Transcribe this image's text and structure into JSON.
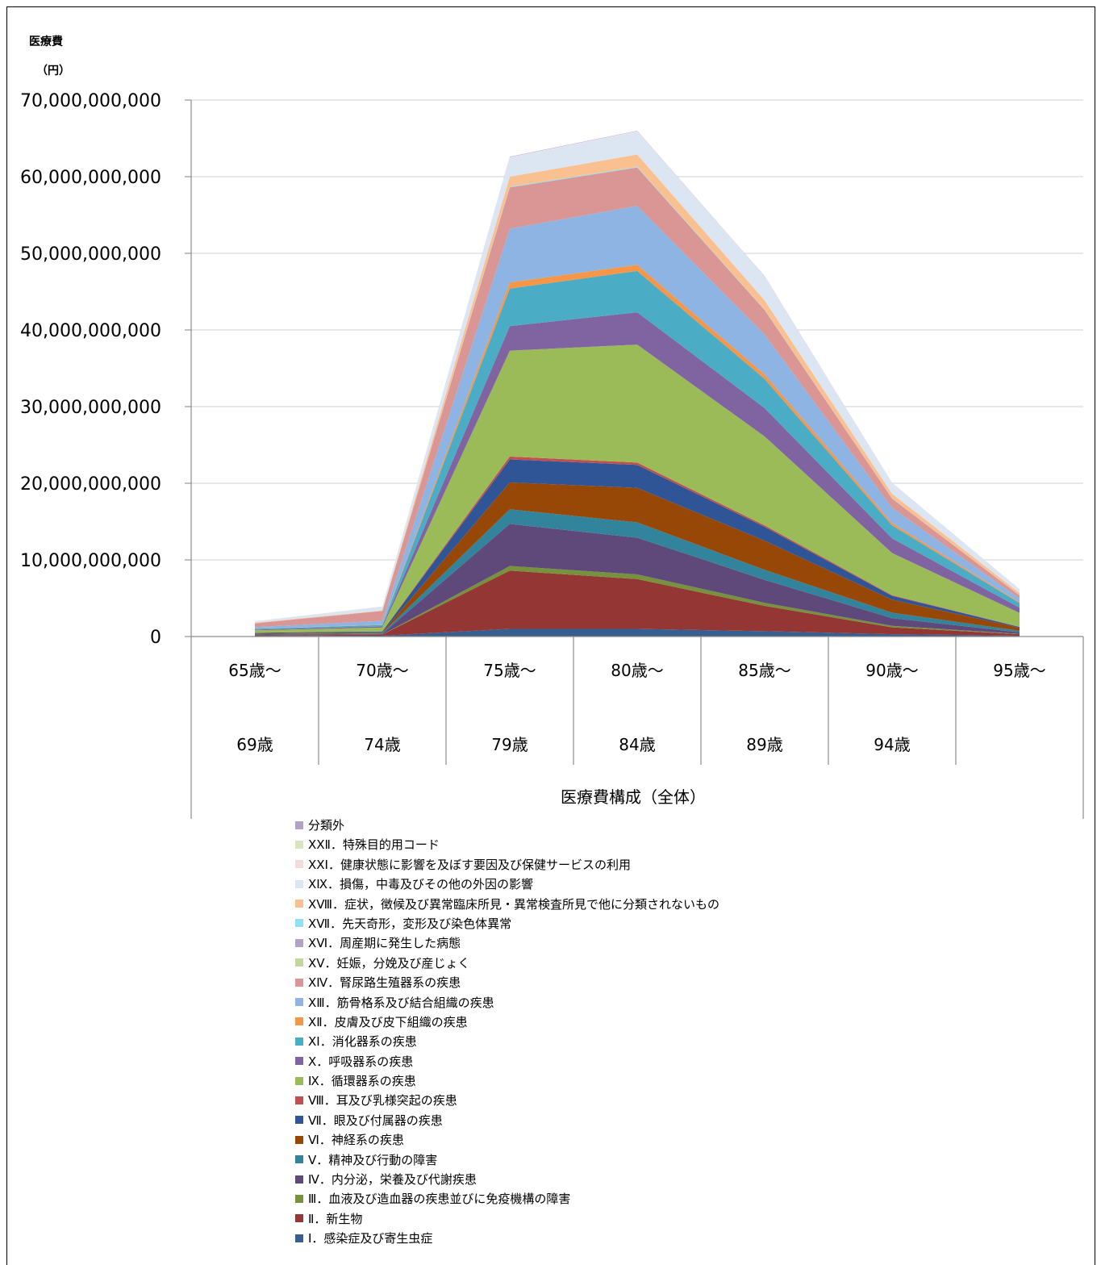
{
  "chart_data": {
    "type": "area",
    "stacked": true,
    "ylabel_line1": "医療費",
    "ylabel_line2": "（円）",
    "xlabel": "医療費構成（全体）",
    "ylim": [
      0,
      70000000000
    ],
    "yticks": [
      "0",
      "10,000,000,000",
      "20,000,000,000",
      "30,000,000,000",
      "40,000,000,000",
      "50,000,000,000",
      "60,000,000,000",
      "70,000,000,000"
    ],
    "ytick_values": [
      0,
      10000000000,
      20000000000,
      30000000000,
      40000000000,
      50000000000,
      60000000000,
      70000000000
    ],
    "grid": true,
    "legend_position": "bottom",
    "categories": [
      {
        "line1": "65歳～",
        "line2": "69歳"
      },
      {
        "line1": "70歳～",
        "line2": "74歳"
      },
      {
        "line1": "75歳～",
        "line2": "79歳"
      },
      {
        "line1": "80歳～",
        "line2": "84歳"
      },
      {
        "line1": "85歳～",
        "line2": "89歳"
      },
      {
        "line1": "90歳～",
        "line2": "94歳"
      },
      {
        "line1": "95歳～",
        "line2": ""
      }
    ],
    "series": [
      {
        "name": "Ⅰ．感染症及び寄生虫症",
        "color": "#365e8f",
        "values": [
          50000000,
          100000000,
          1000000000,
          1000000000,
          700000000,
          300000000,
          100000000
        ]
      },
      {
        "name": "Ⅱ．新生物",
        "color": "#943634",
        "values": [
          100000000,
          150000000,
          7600000000,
          6500000000,
          3300000000,
          900000000,
          200000000
        ]
      },
      {
        "name": "Ⅲ．血液及び造血器の疾患並びに免疫機構の障害",
        "color": "#76923c",
        "values": [
          5000000,
          10000000,
          600000000,
          600000000,
          400000000,
          200000000,
          50000000
        ]
      },
      {
        "name": "Ⅳ．内分泌，栄養及び代謝疾患",
        "color": "#5f497a",
        "values": [
          100000000,
          100000000,
          5500000000,
          4800000000,
          3000000000,
          1000000000,
          200000000
        ]
      },
      {
        "name": "Ⅴ．精神及び行動の障害",
        "color": "#31849b",
        "values": [
          100000000,
          100000000,
          1900000000,
          2000000000,
          1300000000,
          700000000,
          200000000
        ]
      },
      {
        "name": "Ⅵ．神経系の疾患",
        "color": "#974706",
        "values": [
          100000000,
          100000000,
          3500000000,
          4500000000,
          3800000000,
          1700000000,
          400000000
        ]
      },
      {
        "name": "Ⅶ．眼及び付属器の疾患",
        "color": "#2f5597",
        "values": [
          50000000,
          100000000,
          3000000000,
          3000000000,
          1800000000,
          500000000,
          100000000
        ]
      },
      {
        "name": "Ⅷ．耳及び乳様突起の疾患",
        "color": "#c0504d",
        "values": [
          5000000,
          10000000,
          400000000,
          300000000,
          200000000,
          100000000,
          20000000
        ]
      },
      {
        "name": "Ⅸ．循環器系の疾患",
        "color": "#9bbb59",
        "values": [
          300000000,
          500000000,
          13800000000,
          15400000000,
          11600000000,
          5500000000,
          1800000000
        ]
      },
      {
        "name": "Ⅹ．呼吸器系の疾患",
        "color": "#8064a2",
        "values": [
          100000000,
          150000000,
          3200000000,
          4200000000,
          3700000000,
          1900000000,
          700000000
        ]
      },
      {
        "name": "ⅩⅠ．消化器系の疾患",
        "color": "#4bacc6",
        "values": [
          100000000,
          200000000,
          4900000000,
          5400000000,
          3800000000,
          1700000000,
          600000000
        ]
      },
      {
        "name": "ⅩⅡ．皮膚及び皮下組織の疾患",
        "color": "#f79646",
        "values": [
          20000000,
          30000000,
          800000000,
          800000000,
          600000000,
          300000000,
          100000000
        ]
      },
      {
        "name": "ⅩⅢ．筋骨格系及び結合組織の疾患",
        "color": "#8eb4e3",
        "values": [
          200000000,
          500000000,
          7000000000,
          7700000000,
          5200000000,
          2000000000,
          500000000
        ]
      },
      {
        "name": "ⅩⅣ．腎尿路生殖器系の疾患",
        "color": "#d99694",
        "values": [
          500000000,
          1300000000,
          5400000000,
          5000000000,
          3200000000,
          1200000000,
          400000000
        ]
      },
      {
        "name": "ⅩⅤ．妊娠，分娩及び産じょく",
        "color": "#c3d69b",
        "values": [
          0,
          0,
          0,
          0,
          0,
          0,
          0
        ]
      },
      {
        "name": "ⅩⅥ．周産期に発生した病態",
        "color": "#b3a2c7",
        "values": [
          0,
          0,
          0,
          0,
          0,
          0,
          0
        ]
      },
      {
        "name": "ⅩⅦ．先天奇形，変形及び染色体異常",
        "color": "#93e0f5",
        "values": [
          5000000,
          5000000,
          100000000,
          100000000,
          50000000,
          20000000,
          5000000
        ]
      },
      {
        "name": "ⅩⅧ．症状，徴候及び異常臨床所見・異常検査所見で他に分類されないもの",
        "color": "#fac090",
        "values": [
          60000000,
          60000000,
          1300000000,
          1600000000,
          1200000000,
          600000000,
          300000000
        ]
      },
      {
        "name": "ⅩⅨ．損傷，中毒及びその他の外因の影響",
        "color": "#dce6f2",
        "values": [
          200000000,
          500000000,
          2500000000,
          3000000000,
          3100000000,
          1400000000,
          500000000
        ]
      },
      {
        "name": "ⅩⅩⅠ．健康状態に影響を及ぼす要因及び保健サービスの利用",
        "color": "#f2dcdb",
        "values": [
          5000000,
          5000000,
          50000000,
          60000000,
          40000000,
          20000000,
          10000000
        ]
      },
      {
        "name": "ⅩⅩⅡ．特殊目的用コード",
        "color": "#d7e4bd",
        "values": [
          0,
          0,
          0,
          0,
          0,
          0,
          0
        ]
      },
      {
        "name": "分類外",
        "color": "#b1a0c7",
        "values": [
          5000000,
          5000000,
          50000000,
          40000000,
          30000000,
          10000000,
          5000000
        ]
      }
    ]
  }
}
